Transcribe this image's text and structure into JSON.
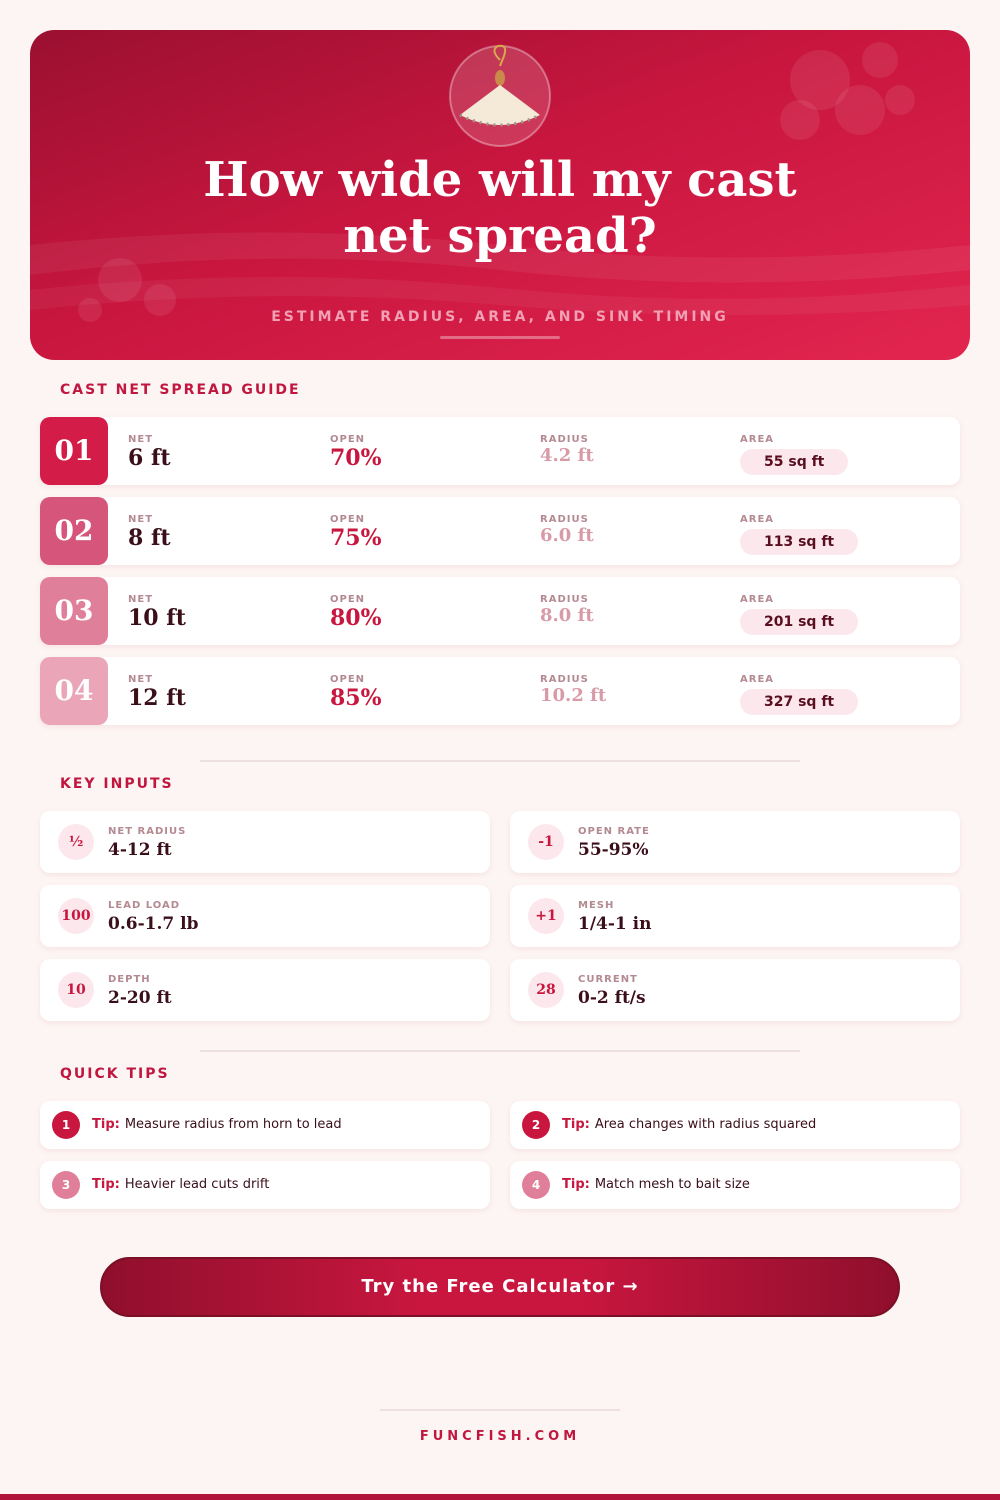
{
  "header": {
    "title": "How wide will my cast net spread?",
    "subtitle": "ESTIMATE RADIUS, AREA, AND SINK TIMING"
  },
  "guide": {
    "heading": "CAST NET SPREAD GUIDE",
    "columns": [
      "NET",
      "OPEN",
      "RADIUS",
      "AREA"
    ],
    "rows": [
      {
        "number": "01",
        "net": "6 ft",
        "open": "70%",
        "radius": "4.2 ft",
        "area": "55 sq ft"
      },
      {
        "number": "02",
        "net": "8 ft",
        "open": "75%",
        "radius": "6.0 ft",
        "area": "113 sq ft"
      },
      {
        "number": "03",
        "net": "10 ft",
        "open": "80%",
        "radius": "8.0 ft",
        "area": "201 sq ft"
      },
      {
        "number": "04",
        "net": "12 ft",
        "open": "85%",
        "radius": "10.2 ft",
        "area": "327 sq ft"
      }
    ]
  },
  "inputs": {
    "heading": "KEY INPUTS",
    "items": [
      {
        "icon": "½",
        "label": "NET RADIUS",
        "value": "4-12 ft"
      },
      {
        "icon": "-1",
        "label": "OPEN RATE",
        "value": "55-95%"
      },
      {
        "icon": "100",
        "label": "LEAD LOAD",
        "value": "0.6-1.7 lb"
      },
      {
        "icon": "+1",
        "label": "MESH",
        "value": "1/4-1 in"
      },
      {
        "icon": "10",
        "label": "DEPTH",
        "value": "2-20 ft"
      },
      {
        "icon": "28",
        "label": "CURRENT",
        "value": "0-2 ft/s"
      }
    ]
  },
  "tips": {
    "heading": "QUICK TIPS",
    "prefix": "Tip:",
    "items": [
      {
        "number": "1",
        "text": "Measure radius from horn to lead"
      },
      {
        "number": "2",
        "text": "Area changes with radius squared"
      },
      {
        "number": "3",
        "text": "Heavier lead cuts drift"
      },
      {
        "number": "4",
        "text": "Match mesh to bait size"
      }
    ]
  },
  "cta": "Try the Free Calculator →",
  "footer": "FUNCFISH.COM"
}
